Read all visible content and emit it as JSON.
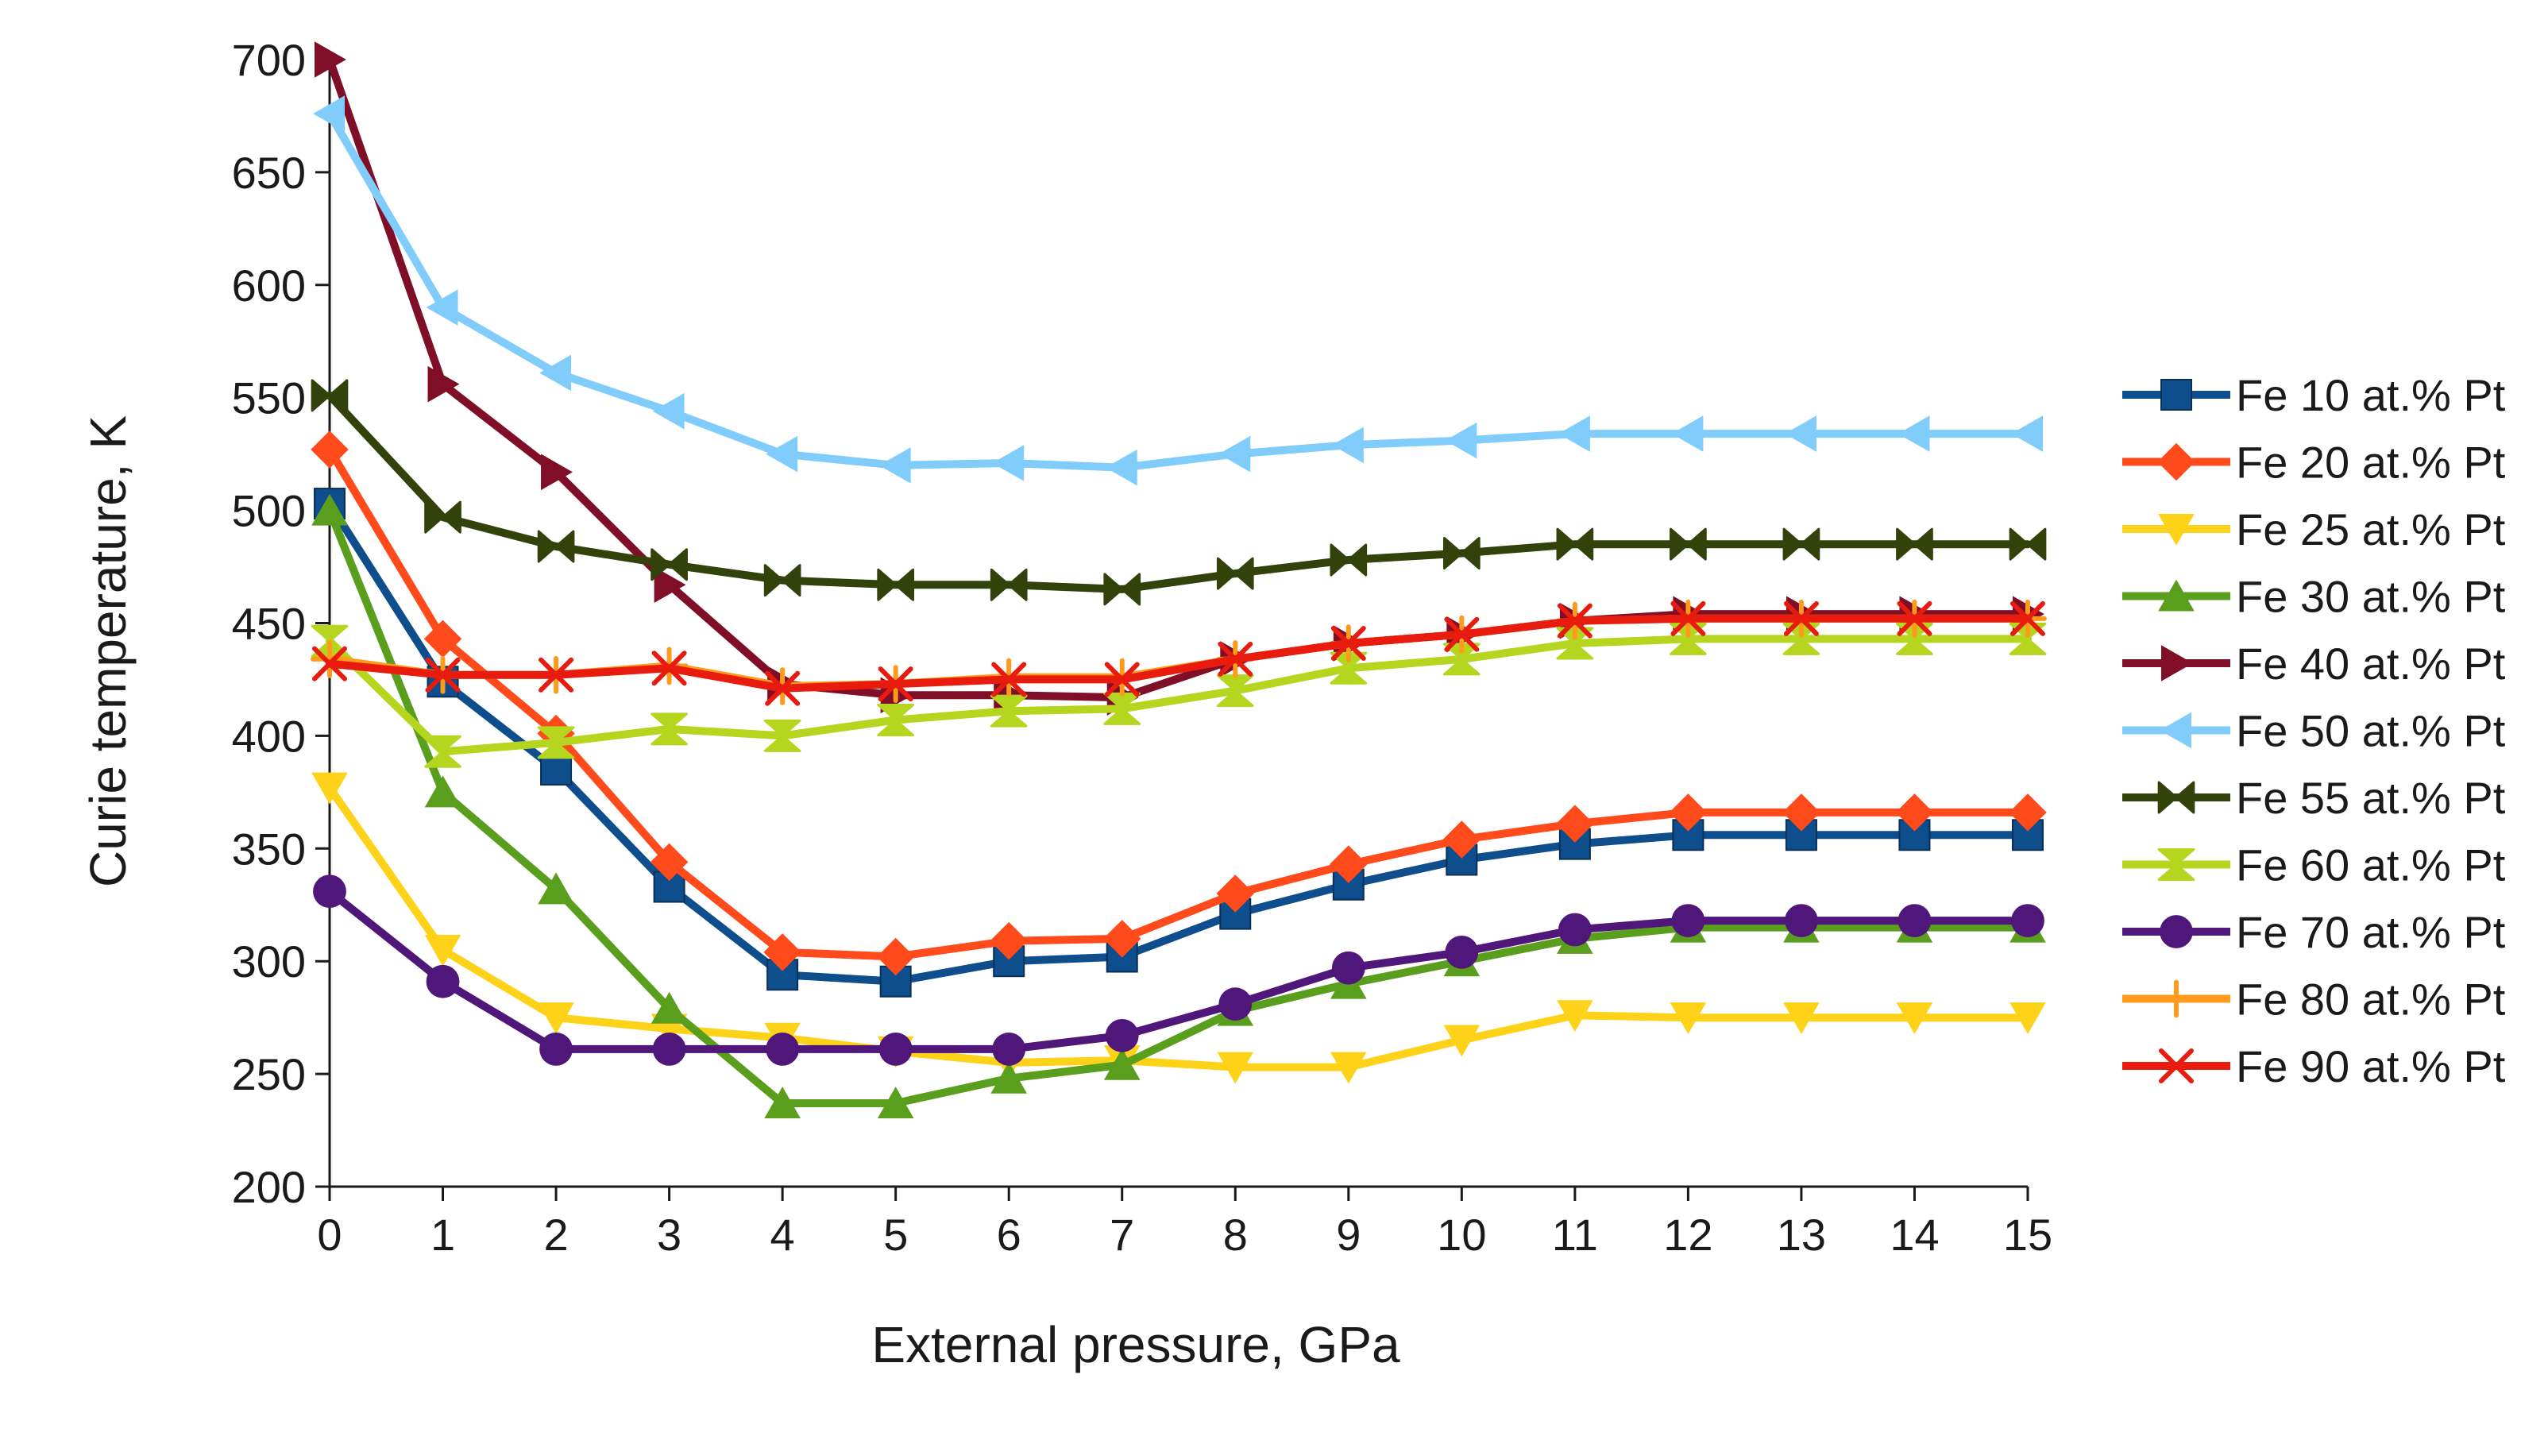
{
  "chart_data": {
    "type": "line",
    "title": "",
    "xlabel": "External pressure, GPa",
    "ylabel": "Curie temperature, K",
    "xlim": [
      0,
      15
    ],
    "ylim": [
      200,
      700
    ],
    "x": [
      0,
      1,
      2,
      3,
      4,
      5,
      6,
      7,
      8,
      9,
      10,
      11,
      12,
      13,
      14,
      15
    ],
    "xticks": [
      "0",
      "1",
      "2",
      "3",
      "4",
      "5",
      "6",
      "7",
      "8",
      "9",
      "10",
      "11",
      "12",
      "13",
      "14",
      "15"
    ],
    "yticks": [
      "200",
      "250",
      "300",
      "350",
      "400",
      "450",
      "500",
      "550",
      "600",
      "650",
      "700"
    ],
    "grid": false,
    "legend_position": "right",
    "series": [
      {
        "name": "Fe 10 at.% Pt",
        "color": "#0e4e8c",
        "marker": "square",
        "values": [
          503,
          424,
          385,
          333,
          294,
          291,
          300,
          302,
          321,
          334,
          345,
          352,
          356,
          356,
          356,
          356
        ]
      },
      {
        "name": "Fe 20 at.% Pt",
        "color": "#ff4a1c",
        "marker": "diamond",
        "values": [
          527,
          443,
          401,
          344,
          304,
          302,
          309,
          310,
          330,
          343,
          354,
          361,
          366,
          366,
          366,
          366
        ]
      },
      {
        "name": "Fe 25 at.% Pt",
        "color": "#ffd21a",
        "marker": "triangle-down",
        "values": [
          377,
          305,
          275,
          270,
          266,
          260,
          255,
          256,
          253,
          253,
          265,
          276,
          275,
          275,
          275,
          275
        ]
      },
      {
        "name": "Fe 30 at.% Pt",
        "color": "#5a9e1e",
        "marker": "triangle-up",
        "values": [
          500,
          375,
          332,
          279,
          237,
          237,
          248,
          254,
          278,
          290,
          300,
          310,
          315,
          315,
          315,
          315
        ]
      },
      {
        "name": "Fe 40 at.% Pt",
        "color": "#7f0e26",
        "marker": "triangle-right",
        "values": [
          700,
          556,
          517,
          467,
          423,
          418,
          418,
          417,
          434,
          441,
          445,
          451,
          454,
          454,
          454,
          454
        ]
      },
      {
        "name": "Fe 50 at.% Pt",
        "color": "#80cdfc",
        "marker": "triangle-left",
        "values": [
          676,
          590,
          561,
          544,
          525,
          520,
          521,
          519,
          525,
          529,
          531,
          534,
          534,
          534,
          534,
          534
        ]
      },
      {
        "name": "Fe 55 at.% Pt",
        "color": "#33420a",
        "marker": "bowtie",
        "values": [
          551,
          497,
          484,
          476,
          469,
          467,
          467,
          465,
          472,
          478,
          481,
          485,
          485,
          485,
          485,
          485
        ]
      },
      {
        "name": "Fe 60 at.% Pt",
        "color": "#b5d51e",
        "marker": "hourglass",
        "values": [
          442,
          393,
          397,
          403,
          400,
          407,
          411,
          412,
          420,
          430,
          434,
          441,
          443,
          443,
          443,
          443
        ]
      },
      {
        "name": "Fe 70 at.% Pt",
        "color": "#4f1779",
        "marker": "circle",
        "values": [
          331,
          291,
          261,
          261,
          261,
          261,
          261,
          267,
          281,
          297,
          304,
          314,
          318,
          318,
          318,
          318
        ]
      },
      {
        "name": "Fe 80 at.% Pt",
        "color": "#ff9a1a",
        "marker": "plus",
        "values": [
          434,
          427,
          427,
          431,
          422,
          423,
          426,
          426,
          434,
          441,
          445,
          451,
          452,
          452,
          452,
          452
        ]
      },
      {
        "name": "Fe 90 at.% Pt",
        "color": "#e81c0e",
        "marker": "x",
        "values": [
          432,
          427,
          427,
          430,
          421,
          423,
          425,
          425,
          434,
          441,
          445,
          451,
          452,
          452,
          452,
          452
        ]
      }
    ]
  }
}
